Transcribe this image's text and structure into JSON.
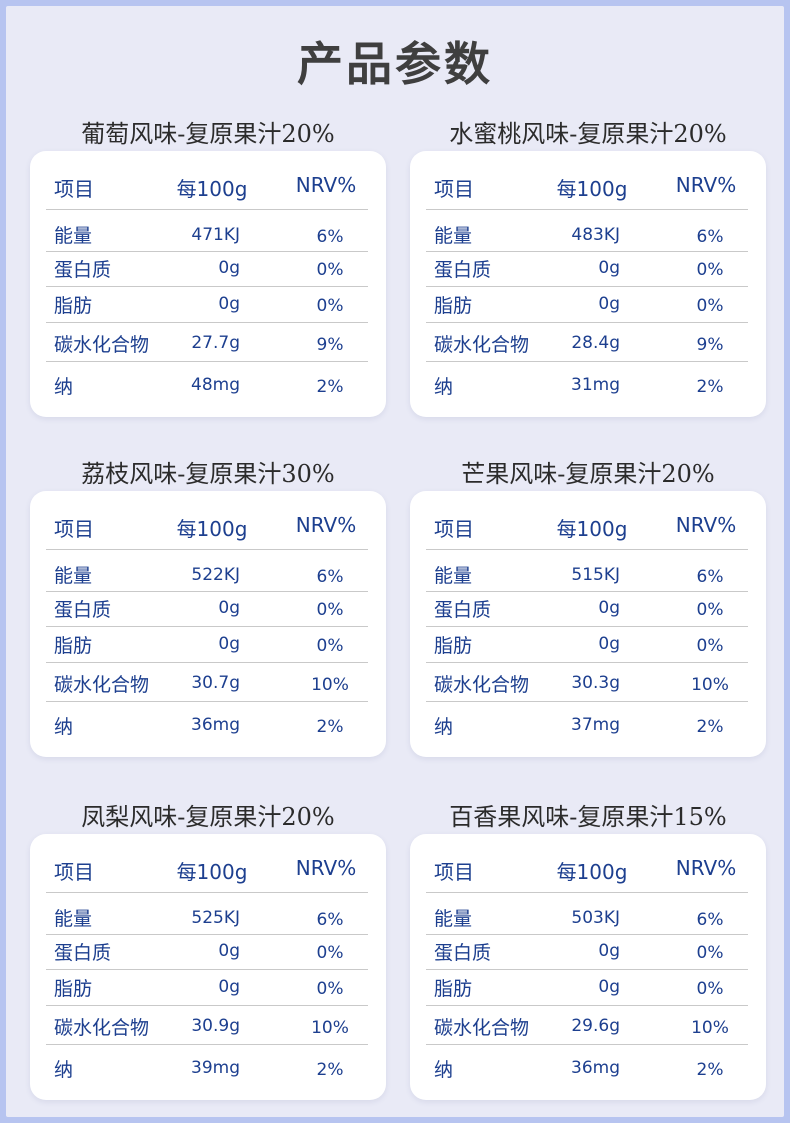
{
  "page_title": "产品参数",
  "table_header": {
    "item": "项目",
    "per100g": "每100g",
    "nrv": "NRV%"
  },
  "nutrient_names": [
    "能量",
    "蛋白质",
    "脂肪",
    "碳水化合物",
    "纳"
  ],
  "products": [
    {
      "title": "葡萄风味-复原果汁20%",
      "rows": [
        {
          "value": "471KJ",
          "nrv": "6%"
        },
        {
          "value": "0g",
          "nrv": "0%"
        },
        {
          "value": "0g",
          "nrv": "0%"
        },
        {
          "value": "27.7g",
          "nrv": "9%"
        },
        {
          "value": "48mg",
          "nrv": "2%"
        }
      ]
    },
    {
      "title": "水蜜桃风味-复原果汁20%",
      "rows": [
        {
          "value": "483KJ",
          "nrv": "6%"
        },
        {
          "value": "0g",
          "nrv": "0%"
        },
        {
          "value": "0g",
          "nrv": "0%"
        },
        {
          "value": "28.4g",
          "nrv": "9%"
        },
        {
          "value": "31mg",
          "nrv": "2%"
        }
      ]
    },
    {
      "title": "荔枝风味-复原果汁30%",
      "rows": [
        {
          "value": "522KJ",
          "nrv": "6%"
        },
        {
          "value": "0g",
          "nrv": "0%"
        },
        {
          "value": "0g",
          "nrv": "0%"
        },
        {
          "value": "30.7g",
          "nrv": "10%"
        },
        {
          "value": "36mg",
          "nrv": "2%"
        }
      ]
    },
    {
      "title": "芒果风味-复原果汁20%",
      "rows": [
        {
          "value": "515KJ",
          "nrv": "6%"
        },
        {
          "value": "0g",
          "nrv": "0%"
        },
        {
          "value": "0g",
          "nrv": "0%"
        },
        {
          "value": "30.3g",
          "nrv": "10%"
        },
        {
          "value": "37mg",
          "nrv": "2%"
        }
      ]
    },
    {
      "title": "凤梨风味-复原果汁20%",
      "rows": [
        {
          "value": "525KJ",
          "nrv": "6%"
        },
        {
          "value": "0g",
          "nrv": "0%"
        },
        {
          "value": "0g",
          "nrv": "0%"
        },
        {
          "value": "30.9g",
          "nrv": "10%"
        },
        {
          "value": "39mg",
          "nrv": "2%"
        }
      ]
    },
    {
      "title": "百香果风味-复原果汁15%",
      "rows": [
        {
          "value": "503KJ",
          "nrv": "6%"
        },
        {
          "value": "0g",
          "nrv": "0%"
        },
        {
          "value": "0g",
          "nrv": "0%"
        },
        {
          "value": "29.6g",
          "nrv": "10%"
        },
        {
          "value": "36mg",
          "nrv": "2%"
        }
      ]
    }
  ],
  "colors": {
    "background": "#e9eaf6",
    "border": "#b7c4f0",
    "text_blue": "#1d3f8f",
    "card": "#ffffff"
  }
}
